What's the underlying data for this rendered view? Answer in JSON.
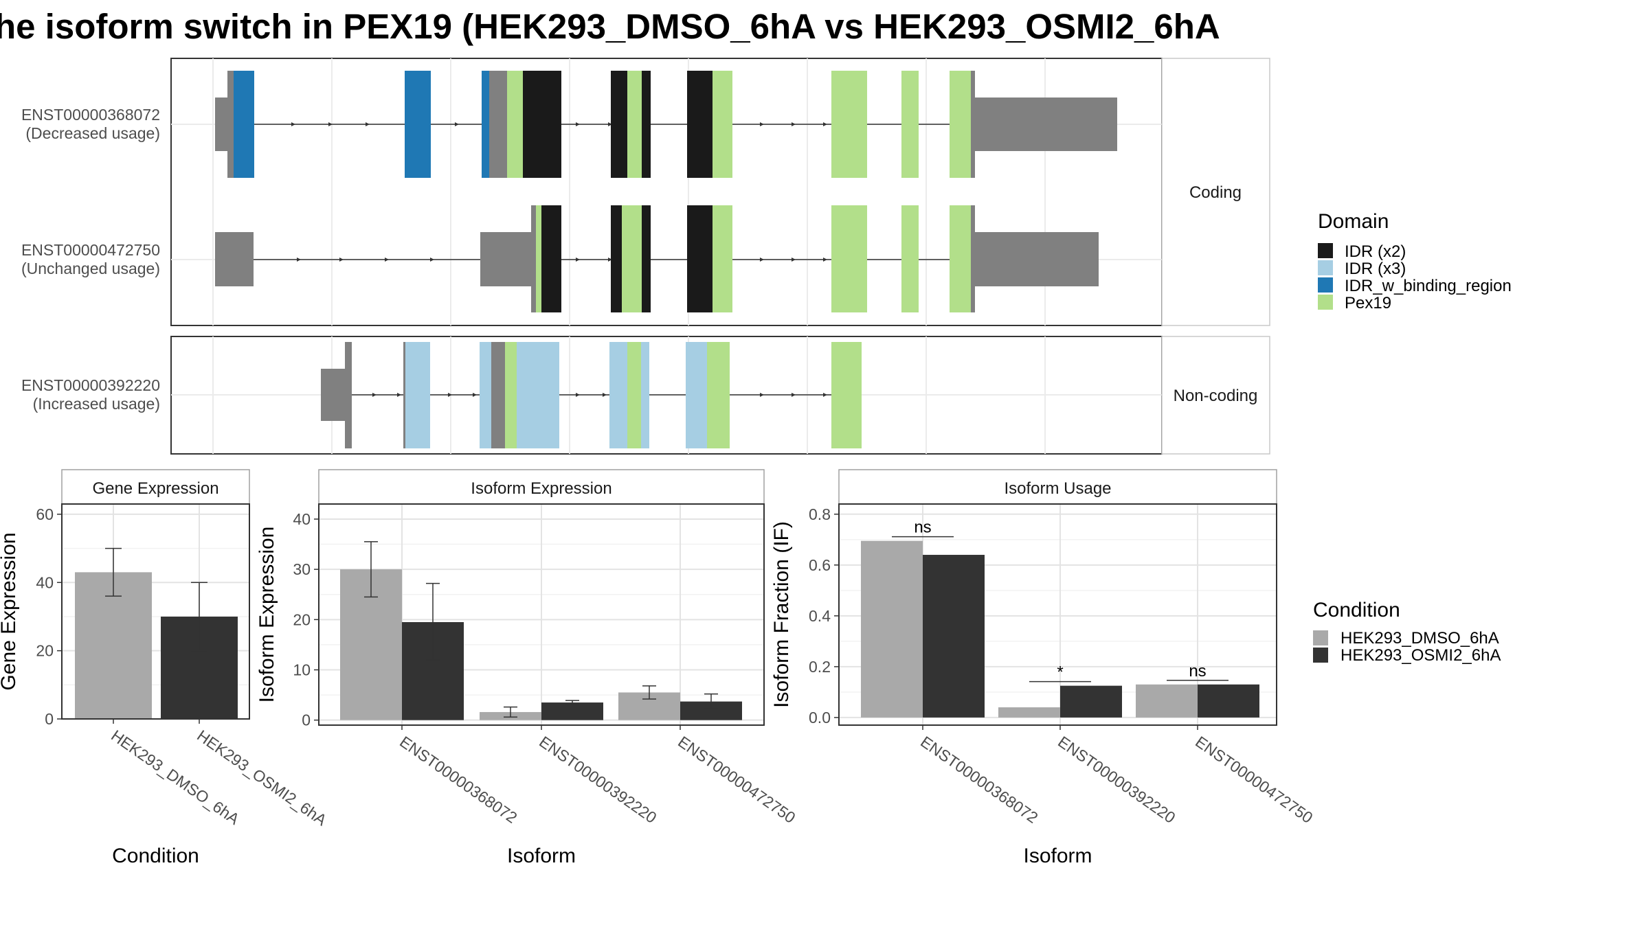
{
  "title": "he isoform switch in PEX19 (HEK293_DMSO_6hA vs HEK293_OSMI2_6hA",
  "colors": {
    "utr": "#808080",
    "idr_x2": "#1a1a1a",
    "idr_x3": "#a6cee3",
    "idr_binding": "#1f78b4",
    "pex19": "#b2df8a",
    "dmso": "#a9a9a9",
    "osmi2": "#333333"
  },
  "structure_panels": [
    {
      "strip": "Coding",
      "isoforms": [
        {
          "id": "ENST00000368072",
          "note": "(Decreased usage)"
        },
        {
          "id": "ENST00000472750",
          "note": "(Unchanged usage)"
        }
      ]
    },
    {
      "strip": "Non-coding",
      "isoforms": [
        {
          "id": "ENST00000392220",
          "note": "(Increased usage)"
        }
      ]
    }
  ],
  "domain_legend": {
    "title": "Domain",
    "items": [
      {
        "label": "IDR (x2)",
        "color_key": "idr_x2"
      },
      {
        "label": "IDR (x3)",
        "color_key": "idr_x3"
      },
      {
        "label": "IDR_w_binding_region",
        "color_key": "idr_binding"
      },
      {
        "label": "Pex19",
        "color_key": "pex19"
      }
    ]
  },
  "condition_legend": {
    "title": "Condition",
    "items": [
      {
        "label": "HEK293_DMSO_6hA",
        "color_key": "dmso"
      },
      {
        "label": "HEK293_OSMI2_6hA",
        "color_key": "osmi2"
      }
    ]
  },
  "chart_data": [
    {
      "type": "bar",
      "strip": "Gene Expression",
      "xlabel": "Condition",
      "ylabel": "Gene Expression",
      "categories": [
        "HEK293_DMSO_6hA",
        "HEK293_OSMI2_6hA"
      ],
      "values": [
        43,
        30
      ],
      "err_low": [
        36,
        20
      ],
      "err_high": [
        50,
        40
      ],
      "ylim": [
        0,
        63
      ],
      "yticks": [
        0,
        20,
        40,
        60
      ],
      "grid": true
    },
    {
      "type": "bar",
      "strip": "Isoform Expression",
      "xlabel": "Isoform",
      "ylabel": "Isoform Expression",
      "categories": [
        "ENST00000368072",
        "ENST00000392220",
        "ENST00000472750"
      ],
      "series": [
        {
          "name": "HEK293_DMSO_6hA",
          "values": [
            30,
            1.6,
            5.5
          ],
          "err_low": [
            24.5,
            0.6,
            4.2
          ],
          "err_high": [
            35.5,
            2.6,
            6.8
          ]
        },
        {
          "name": "HEK293_OSMI2_6hA",
          "values": [
            19.5,
            3.5,
            3.7
          ],
          "err_low": [
            12,
            3.1,
            2.3
          ],
          "err_high": [
            27.2,
            3.9,
            5.2
          ]
        }
      ],
      "ylim": [
        -1,
        43
      ],
      "yticks": [
        0,
        10,
        20,
        30,
        40
      ],
      "grid": true
    },
    {
      "type": "bar",
      "strip": "Isoform Usage",
      "xlabel": "Isoform",
      "ylabel": "Isoform Fraction (IF)",
      "categories": [
        "ENST00000368072",
        "ENST00000392220",
        "ENST00000472750"
      ],
      "series": [
        {
          "name": "HEK293_DMSO_6hA",
          "values": [
            0.695,
            0.04,
            0.13
          ]
        },
        {
          "name": "HEK293_OSMI2_6hA",
          "values": [
            0.64,
            0.125,
            0.13
          ]
        }
      ],
      "significance": [
        "ns",
        "*",
        "ns"
      ],
      "ylim": [
        -0.03,
        0.84
      ],
      "yticks": [
        0.0,
        0.2,
        0.4,
        0.6,
        0.8
      ],
      "grid": true
    }
  ]
}
